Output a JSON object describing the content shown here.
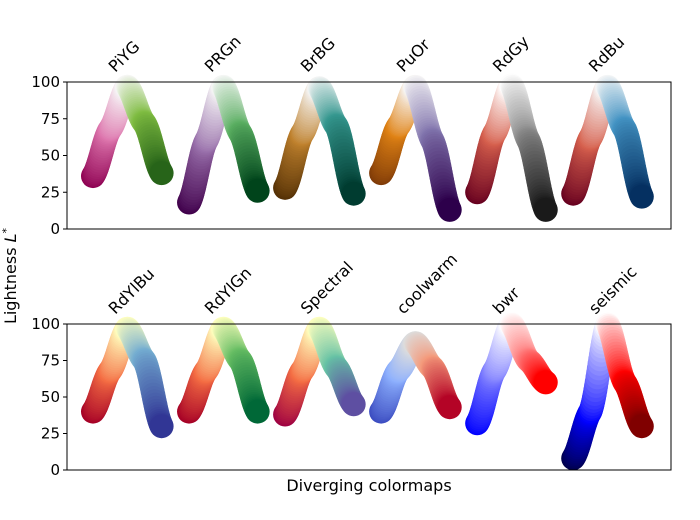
{
  "chart_data": {
    "type": "scatter",
    "xlabel": "Diverging colormaps",
    "ylabel": "Lightness L*",
    "ylabel_main": "Lightness ",
    "ylabel_var": "L",
    "ylabel_sup": "*",
    "ylim": [
      0,
      100
    ],
    "yticks": [
      "0",
      "25",
      "50",
      "75",
      "100"
    ],
    "sample_positions": [
      0,
      0.25,
      0.5,
      0.75,
      1
    ],
    "panels": [
      {
        "colormaps": [
          {
            "name": "PiYG",
            "lightness": [
              36,
              68,
              97,
              72,
              38
            ],
            "colors": [
              "#8e0152",
              "#de77ae",
              "#f7f7f7",
              "#7fbc41",
              "#276419"
            ]
          },
          {
            "name": "PRGn",
            "lightness": [
              18,
              60,
              97,
              65,
              26
            ],
            "colors": [
              "#40004b",
              "#9970ab",
              "#f7f7f7",
              "#5aae61",
              "#00441b"
            ]
          },
          {
            "name": "BrBG",
            "lightness": [
              28,
              65,
              96,
              70,
              24
            ],
            "colors": [
              "#543005",
              "#bf812d",
              "#f5f5f5",
              "#35978f",
              "#003c30"
            ]
          },
          {
            "name": "PuOr",
            "lightness": [
              38,
              70,
              97,
              60,
              13
            ],
            "colors": [
              "#7f3b08",
              "#e08214",
              "#f7f7f7",
              "#8073ac",
              "#2d004b"
            ]
          },
          {
            "name": "RdGy",
            "lightness": [
              25,
              65,
              98,
              60,
              13
            ],
            "colors": [
              "#67001f",
              "#d6604d",
              "#ffffff",
              "#878787",
              "#1a1a1a"
            ]
          },
          {
            "name": "RdBu",
            "lightness": [
              24,
              62,
              97,
              68,
              22
            ],
            "colors": [
              "#67001f",
              "#d6604d",
              "#f7f7f7",
              "#4393c3",
              "#053061"
            ]
          }
        ]
      },
      {
        "colormaps": [
          {
            "name": "RdYlBu",
            "lightness": [
              40,
              68,
              97,
              75,
              30
            ],
            "colors": [
              "#a50026",
              "#f46d43",
              "#ffffbf",
              "#74add1",
              "#313695"
            ]
          },
          {
            "name": "RdYlGn",
            "lightness": [
              40,
              68,
              97,
              75,
              40
            ],
            "colors": [
              "#a50026",
              "#f46d43",
              "#ffffbf",
              "#66bd63",
              "#006837"
            ]
          },
          {
            "name": "Spectral",
            "lightness": [
              38,
              68,
              97,
              70,
              45
            ],
            "colors": [
              "#9e0142",
              "#f46d43",
              "#ffffbf",
              "#66c2a5",
              "#5e4fa2"
            ]
          },
          {
            "name": "coolwarm",
            "lightness": [
              40,
              68,
              87,
              70,
              43
            ],
            "colors": [
              "#3b4cc0",
              "#8db0fe",
              "#dddddd",
              "#f49a7b",
              "#b40426"
            ]
          },
          {
            "name": "bwr",
            "lightness": [
              32,
              68,
              100,
              75,
              60
            ],
            "colors": [
              "#0000ff",
              "#8080ff",
              "#ffffff",
              "#ff8080",
              "#ff0000"
            ]
          },
          {
            "name": "seismic",
            "lightness": [
              8,
              40,
              100,
              60,
              30
            ],
            "colors": [
              "#00004c",
              "#0000ff",
              "#ffffff",
              "#ff0000",
              "#800000"
            ]
          }
        ]
      }
    ]
  }
}
